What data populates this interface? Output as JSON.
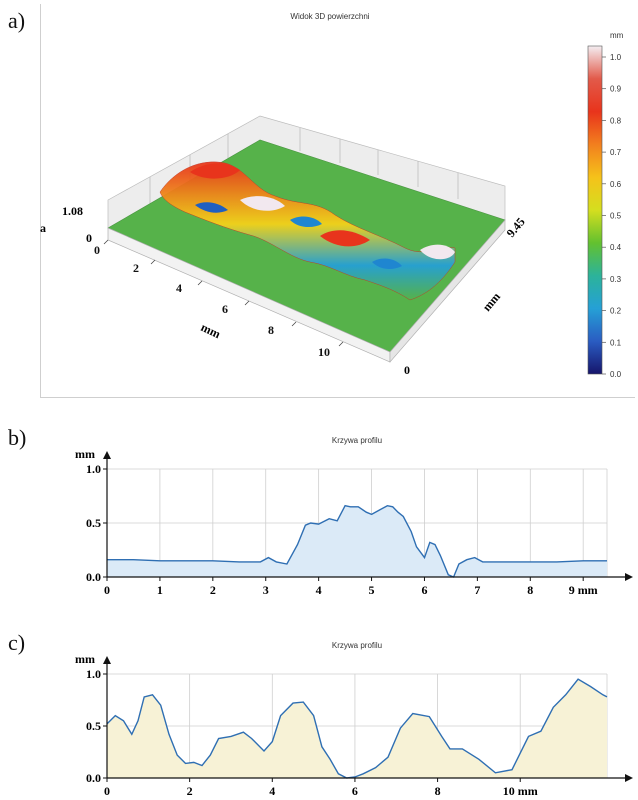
{
  "labels": {
    "a": "a)",
    "b": "b)",
    "c": "c)"
  },
  "panel_a": {
    "title": "Widok 3D powierzchni",
    "z_axis": {
      "top": "1.08",
      "bottom": "0",
      "unit_fragment": "a"
    },
    "x_axis": {
      "label": "mm",
      "ticks": [
        "0",
        "2",
        "4",
        "6",
        "8",
        "10"
      ]
    },
    "y_axis": {
      "label": "mm",
      "max": "9.45",
      "min": "0"
    },
    "colorbar": {
      "unit": "mm",
      "ticks": [
        "1.0",
        "0.9",
        "0.8",
        "0.7",
        "0.6",
        "0.5",
        "0.4",
        "0.3",
        "0.2",
        "0.1",
        "0.0"
      ],
      "colors": [
        "#f4eef2",
        "#e25a4a",
        "#e8341c",
        "#f27f1e",
        "#f5c21a",
        "#d5de1f",
        "#63c12f",
        "#2cb39a",
        "#25a0d6",
        "#2a5cc2",
        "#16156b"
      ]
    },
    "surface_colors": {
      "base": "#56b24a",
      "high": "#e8341c",
      "peak": "#f2e8ef",
      "mid": "#f5d21a",
      "low": "#1f86d0",
      "wall": "#ececec"
    }
  },
  "chart_data": [
    {
      "type": "area",
      "title": "Krzywa profilu",
      "ylabel": "mm",
      "xlabel": "mm",
      "xlim": [
        0,
        9.45
      ],
      "ylim": [
        0,
        1.0
      ],
      "x_ticks": [
        "0",
        "1",
        "2",
        "3",
        "4",
        "5",
        "6",
        "7",
        "8",
        "9"
      ],
      "x_unit_label": "mm",
      "y_ticks": [
        "0.0",
        "0.5",
        "1.0"
      ],
      "grid": true,
      "fill": "#dbeaf7",
      "line": "#2f6fb3",
      "series": [
        {
          "x": [
            0,
            0.5,
            1,
            1.5,
            2,
            2.5,
            2.9,
            3.05,
            3.2,
            3.4,
            3.6,
            3.75,
            3.85,
            4,
            4.2,
            4.35,
            4.5,
            4.6,
            4.75,
            4.9,
            5.0,
            5.15,
            5.3,
            5.4,
            5.5,
            5.6,
            5.75,
            5.85,
            6.0,
            6.1,
            6.2,
            6.3,
            6.45,
            6.55,
            6.65,
            6.8,
            6.95,
            7.1,
            7.5,
            8,
            8.5,
            9,
            9.45
          ],
          "y": [
            0.16,
            0.16,
            0.15,
            0.15,
            0.15,
            0.14,
            0.14,
            0.18,
            0.14,
            0.12,
            0.3,
            0.48,
            0.5,
            0.49,
            0.54,
            0.52,
            0.66,
            0.65,
            0.65,
            0.6,
            0.58,
            0.62,
            0.66,
            0.65,
            0.6,
            0.56,
            0.42,
            0.28,
            0.18,
            0.32,
            0.3,
            0.2,
            0.02,
            0.0,
            0.12,
            0.16,
            0.18,
            0.14,
            0.14,
            0.14,
            0.14,
            0.15,
            0.15
          ]
        }
      ]
    },
    {
      "type": "area",
      "title": "Krzywa profilu",
      "ylabel": "mm",
      "xlabel": "mm",
      "xlim": [
        0,
        12.1
      ],
      "ylim": [
        0,
        1.0
      ],
      "x_ticks": [
        "0",
        "2",
        "4",
        "6",
        "8",
        "10"
      ],
      "x_unit_label": "mm",
      "y_ticks": [
        "0.0",
        "0.5",
        "1.0"
      ],
      "grid": true,
      "fill": "#f7f2d6",
      "line": "#2f6fb3",
      "series": [
        {
          "x": [
            0,
            0.2,
            0.4,
            0.6,
            0.75,
            0.9,
            1.1,
            1.3,
            1.5,
            1.7,
            1.9,
            2.1,
            2.3,
            2.5,
            2.7,
            3.0,
            3.3,
            3.5,
            3.8,
            4.0,
            4.2,
            4.5,
            4.75,
            5.0,
            5.2,
            5.4,
            5.6,
            5.8,
            6.0,
            6.2,
            6.5,
            6.8,
            7.1,
            7.4,
            7.8,
            8.1,
            8.3,
            8.6,
            9.0,
            9.4,
            9.8,
            10.2,
            10.5,
            10.8,
            11.1,
            11.4,
            11.7,
            12.0,
            12.1
          ],
          "y": [
            0.52,
            0.6,
            0.55,
            0.42,
            0.55,
            0.78,
            0.8,
            0.7,
            0.42,
            0.22,
            0.14,
            0.15,
            0.12,
            0.22,
            0.38,
            0.4,
            0.44,
            0.38,
            0.26,
            0.35,
            0.6,
            0.72,
            0.73,
            0.6,
            0.3,
            0.18,
            0.04,
            0.0,
            0.01,
            0.04,
            0.1,
            0.2,
            0.48,
            0.62,
            0.59,
            0.4,
            0.28,
            0.28,
            0.18,
            0.05,
            0.08,
            0.4,
            0.45,
            0.68,
            0.8,
            0.95,
            0.88,
            0.8,
            0.78
          ]
        }
      ]
    }
  ]
}
